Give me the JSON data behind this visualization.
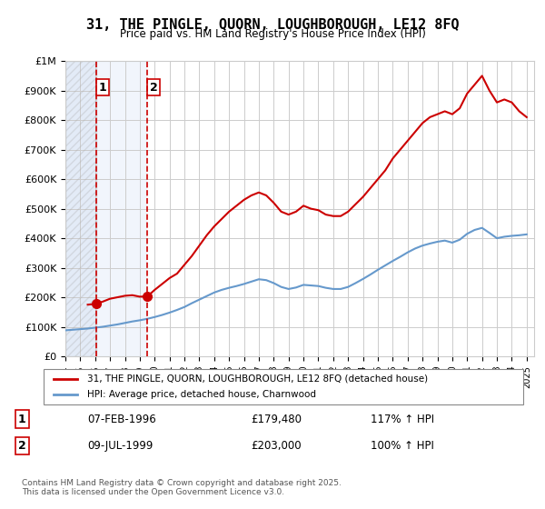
{
  "title": "31, THE PINGLE, QUORN, LOUGHBOROUGH, LE12 8FQ",
  "subtitle": "Price paid vs. HM Land Registry's House Price Index (HPI)",
  "legend_entry1": "31, THE PINGLE, QUORN, LOUGHBOROUGH, LE12 8FQ (detached house)",
  "legend_entry2": "HPI: Average price, detached house, Charnwood",
  "transaction1_label": "1",
  "transaction1_date": "07-FEB-1996",
  "transaction1_price": "£179,480",
  "transaction1_hpi": "117% ↑ HPI",
  "transaction2_label": "2",
  "transaction2_date": "09-JUL-1999",
  "transaction2_price": "£203,000",
  "transaction2_hpi": "100% ↑ HPI",
  "footnote": "Contains HM Land Registry data © Crown copyright and database right 2025.\nThis data is licensed under the Open Government Licence v3.0.",
  "hatch_color": "#c8d8f0",
  "hatch_facecolor": "#dce8f8",
  "bg_color": "#ffffff",
  "grid_color": "#cccccc",
  "red_line_color": "#cc0000",
  "blue_line_color": "#6699cc",
  "marker_color": "#cc0000",
  "vline1_color": "#cc0000",
  "vline2_color": "#cc0000",
  "shading_color": "#dce8f8",
  "xmin": 1994.0,
  "xmax": 2025.5,
  "ymin": 0,
  "ymax": 1000000,
  "yticks": [
    0,
    100000,
    200000,
    300000,
    400000,
    500000,
    600000,
    700000,
    800000,
    900000,
    1000000
  ],
  "ytick_labels": [
    "£0",
    "£100K",
    "£200K",
    "£300K",
    "£400K",
    "£500K",
    "£600K",
    "£700K",
    "£800K",
    "£900K",
    "£1M"
  ],
  "xtick_years": [
    1994,
    1995,
    1996,
    1997,
    1998,
    1999,
    2000,
    2001,
    2002,
    2003,
    2004,
    2005,
    2006,
    2007,
    2008,
    2009,
    2010,
    2011,
    2012,
    2013,
    2014,
    2015,
    2016,
    2017,
    2018,
    2019,
    2020,
    2021,
    2022,
    2023,
    2024,
    2025
  ],
  "transaction1_x": 1996.1,
  "transaction1_y": 179480,
  "transaction2_x": 1999.52,
  "transaction2_y": 203000,
  "vline1_x": 1996.1,
  "vline2_x": 1999.52,
  "red_line_data_x": [
    1995.5,
    1996.0,
    1996.1,
    1996.2,
    1996.5,
    1997.0,
    1997.5,
    1998.0,
    1998.5,
    1999.0,
    1999.52,
    1999.6,
    2000.0,
    2000.5,
    2001.0,
    2001.5,
    2002.0,
    2002.5,
    2003.0,
    2003.5,
    2004.0,
    2004.5,
    2005.0,
    2005.5,
    2006.0,
    2006.5,
    2007.0,
    2007.5,
    2008.0,
    2008.5,
    2009.0,
    2009.5,
    2010.0,
    2010.5,
    2011.0,
    2011.5,
    2012.0,
    2012.5,
    2013.0,
    2013.5,
    2014.0,
    2014.5,
    2015.0,
    2015.5,
    2016.0,
    2016.5,
    2017.0,
    2017.5,
    2018.0,
    2018.5,
    2019.0,
    2019.5,
    2020.0,
    2020.5,
    2021.0,
    2021.5,
    2022.0,
    2022.5,
    2023.0,
    2023.5,
    2024.0,
    2024.5,
    2025.0
  ],
  "red_line_data_y": [
    175000,
    177000,
    179480,
    181000,
    185000,
    195000,
    200000,
    205000,
    207000,
    202000,
    203000,
    207000,
    225000,
    245000,
    265000,
    280000,
    310000,
    340000,
    375000,
    410000,
    440000,
    465000,
    490000,
    510000,
    530000,
    545000,
    555000,
    545000,
    520000,
    490000,
    480000,
    490000,
    510000,
    500000,
    495000,
    480000,
    475000,
    475000,
    490000,
    515000,
    540000,
    570000,
    600000,
    630000,
    670000,
    700000,
    730000,
    760000,
    790000,
    810000,
    820000,
    830000,
    820000,
    840000,
    890000,
    920000,
    950000,
    900000,
    860000,
    870000,
    860000,
    830000,
    810000
  ],
  "blue_line_data_x": [
    1994.0,
    1994.5,
    1995.0,
    1995.5,
    1996.0,
    1996.5,
    1997.0,
    1997.5,
    1998.0,
    1998.5,
    1999.0,
    1999.5,
    2000.0,
    2000.5,
    2001.0,
    2001.5,
    2002.0,
    2002.5,
    2003.0,
    2003.5,
    2004.0,
    2004.5,
    2005.0,
    2005.5,
    2006.0,
    2006.5,
    2007.0,
    2007.5,
    2008.0,
    2008.5,
    2009.0,
    2009.5,
    2010.0,
    2010.5,
    2011.0,
    2011.5,
    2012.0,
    2012.5,
    2013.0,
    2013.5,
    2014.0,
    2014.5,
    2015.0,
    2015.5,
    2016.0,
    2016.5,
    2017.0,
    2017.5,
    2018.0,
    2018.5,
    2019.0,
    2019.5,
    2020.0,
    2020.5,
    2021.0,
    2021.5,
    2022.0,
    2022.5,
    2023.0,
    2023.5,
    2024.0,
    2024.5,
    2025.0
  ],
  "blue_line_data_y": [
    88000,
    90000,
    92000,
    94000,
    97000,
    100000,
    104000,
    108000,
    113000,
    118000,
    122000,
    127000,
    133000,
    140000,
    148000,
    157000,
    167000,
    180000,
    192000,
    204000,
    216000,
    225000,
    232000,
    238000,
    245000,
    253000,
    261000,
    258000,
    248000,
    235000,
    228000,
    233000,
    242000,
    240000,
    238000,
    232000,
    228000,
    228000,
    235000,
    248000,
    262000,
    277000,
    293000,
    308000,
    323000,
    337000,
    352000,
    365000,
    375000,
    382000,
    388000,
    392000,
    385000,
    395000,
    415000,
    428000,
    435000,
    418000,
    400000,
    405000,
    408000,
    410000,
    413000
  ]
}
